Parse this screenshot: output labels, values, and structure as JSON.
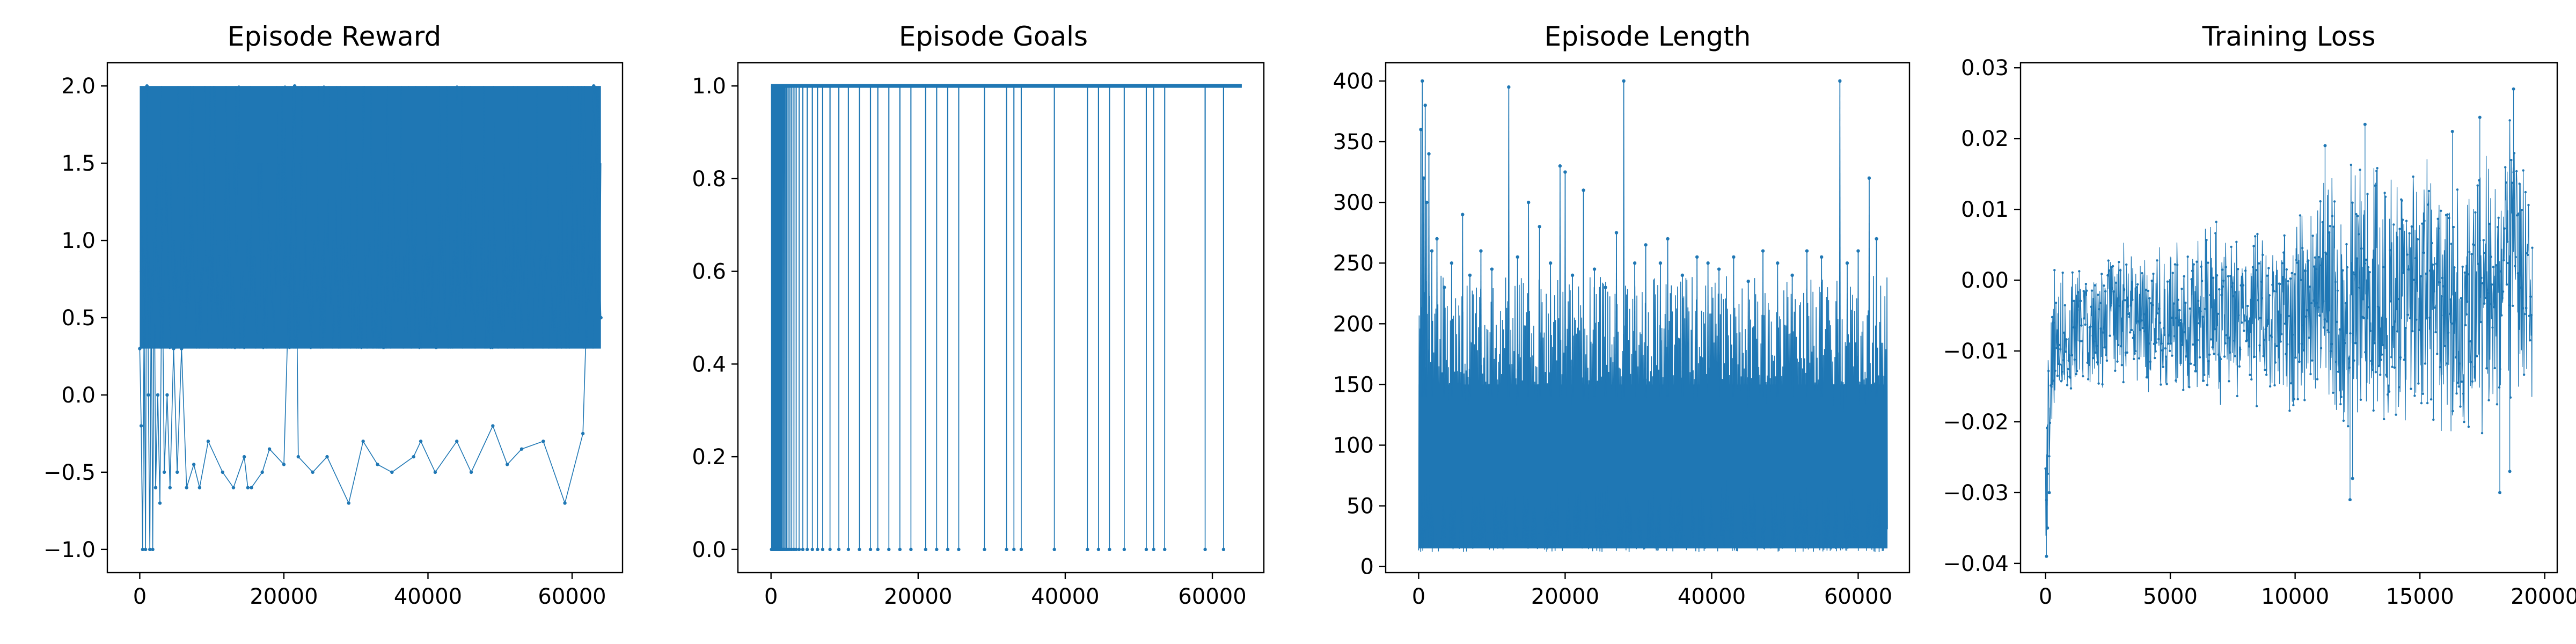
{
  "figure": {
    "background": "#ffffff",
    "series_color": "#1f77b4"
  },
  "chart_data": [
    {
      "type": "line",
      "title": "Episode Reward",
      "xlabel": "",
      "ylabel": "",
      "xlim": [
        -4500,
        67000
      ],
      "ylim": [
        -1.15,
        2.15
      ],
      "xticks": [
        0,
        20000,
        40000,
        60000
      ],
      "xtick_labels": [
        "0",
        "20000",
        "40000",
        "60000"
      ],
      "yticks": [
        -1.0,
        -0.5,
        0.0,
        0.5,
        1.0,
        1.5,
        2.0
      ],
      "ytick_labels": [
        "−1.0",
        "−0.5",
        "0.0",
        "0.5",
        "1.0",
        "1.5",
        "2.0"
      ],
      "grid": false,
      "legend": "none",
      "n_episodes": 64000,
      "series": [
        {
          "name": "",
          "summary": "per-episode reward, values mostly between 0.3 and 2.0, with occasional drops to negative values",
          "band": {
            "x": [
              0,
              64000
            ],
            "y": [
              0.3,
              2.0
            ]
          },
          "points": [
            [
              0,
              0.3
            ],
            [
              200,
              -0.2
            ],
            [
              400,
              -1.0
            ],
            [
              600,
              0.5
            ],
            [
              800,
              -1.0
            ],
            [
              1000,
              2.0
            ],
            [
              1200,
              0.0
            ],
            [
              1400,
              -1.0
            ],
            [
              1600,
              0.8
            ],
            [
              1800,
              -1.0
            ],
            [
              2000,
              1.0
            ],
            [
              2200,
              -0.6
            ],
            [
              2500,
              0.0
            ],
            [
              2800,
              -0.7
            ],
            [
              3100,
              1.0
            ],
            [
              3400,
              -0.5
            ],
            [
              3800,
              0.0
            ],
            [
              4200,
              -0.6
            ],
            [
              4700,
              0.3
            ],
            [
              5200,
              -0.5
            ],
            [
              5800,
              0.3
            ],
            [
              6500,
              -0.6
            ],
            [
              7500,
              -0.45
            ],
            [
              8300,
              -0.6
            ],
            [
              9500,
              -0.3
            ],
            [
              11500,
              -0.5
            ],
            [
              13000,
              -0.6
            ],
            [
              14500,
              -0.4
            ],
            [
              15000,
              -0.6
            ],
            [
              15500,
              -0.6
            ],
            [
              17000,
              -0.5
            ],
            [
              18000,
              -0.35
            ],
            [
              20000,
              -0.45
            ],
            [
              21500,
              2.0
            ],
            [
              22000,
              -0.4
            ],
            [
              24000,
              -0.5
            ],
            [
              26000,
              -0.4
            ],
            [
              29000,
              -0.7
            ],
            [
              31000,
              -0.3
            ],
            [
              33000,
              -0.45
            ],
            [
              35000,
              -0.5
            ],
            [
              38000,
              -0.4
            ],
            [
              39000,
              -0.3
            ],
            [
              41000,
              -0.5
            ],
            [
              44000,
              -0.3
            ],
            [
              46000,
              -0.5
            ],
            [
              49000,
              -0.2
            ],
            [
              51000,
              -0.45
            ],
            [
              53000,
              -0.35
            ],
            [
              56000,
              -0.3
            ],
            [
              59000,
              -0.7
            ],
            [
              61500,
              -0.25
            ],
            [
              63000,
              2.0
            ],
            [
              64000,
              0.5
            ]
          ]
        }
      ]
    },
    {
      "type": "line",
      "title": "Episode Goals",
      "xlabel": "",
      "ylabel": "",
      "xlim": [
        -4500,
        67000
      ],
      "ylim": [
        -0.05,
        1.05
      ],
      "xticks": [
        0,
        20000,
        40000,
        60000
      ],
      "xtick_labels": [
        "0",
        "20000",
        "40000",
        "60000"
      ],
      "yticks": [
        0.0,
        0.2,
        0.4,
        0.6,
        0.8,
        1.0
      ],
      "ytick_labels": [
        "0.0",
        "0.2",
        "0.4",
        "0.6",
        "0.8",
        "1.0"
      ],
      "grid": false,
      "legend": "none",
      "n_episodes": 64000,
      "series": [
        {
          "name": "",
          "summary": "binary goal indicator: nearly always 1.0, with frequent 0.0 episodes early and sparse 0.0 episodes later",
          "baseline": 1.0,
          "zero_episodes": [
            50,
            120,
            200,
            260,
            330,
            400,
            470,
            540,
            620,
            700,
            780,
            860,
            950,
            1040,
            1130,
            1230,
            1330,
            1450,
            1600,
            1750,
            1900,
            2100,
            2300,
            2550,
            2800,
            3100,
            3400,
            3800,
            4300,
            4900,
            5600,
            6300,
            7000,
            8000,
            9200,
            10500,
            12000,
            13500,
            14500,
            16000,
            17500,
            19000,
            21000,
            22500,
            24000,
            25500,
            29000,
            32000,
            33000,
            34000,
            38500,
            43000,
            44500,
            46000,
            48000,
            51000,
            52000,
            53500,
            59000,
            61500
          ]
        }
      ]
    },
    {
      "type": "line",
      "title": "Episode Length",
      "xlabel": "",
      "ylabel": "",
      "xlim": [
        -4500,
        67000
      ],
      "ylim": [
        -5,
        415
      ],
      "xticks": [
        0,
        20000,
        40000,
        60000
      ],
      "xtick_labels": [
        "0",
        "20000",
        "40000",
        "60000"
      ],
      "yticks": [
        0,
        50,
        100,
        150,
        200,
        250,
        300,
        350,
        400
      ],
      "ytick_labels": [
        "0",
        "50",
        "100",
        "150",
        "200",
        "250",
        "300",
        "350",
        "400"
      ],
      "grid": false,
      "legend": "none",
      "n_episodes": 64000,
      "series": [
        {
          "name": "",
          "summary": "episode length in steps: dense band roughly 15 to 150, frequent peaks 180 to 280, rare maxima at 400",
          "band": {
            "x": [
              0,
              64000
            ],
            "y": [
              15,
              150
            ]
          },
          "peaks": [
            [
              300,
              360
            ],
            [
              500,
              400
            ],
            [
              700,
              320
            ],
            [
              900,
              380
            ],
            [
              1100,
              300
            ],
            [
              1400,
              340
            ],
            [
              1800,
              260
            ],
            [
              2500,
              270
            ],
            [
              3500,
              230
            ],
            [
              4500,
              250
            ],
            [
              6000,
              290
            ],
            [
              7000,
              240
            ],
            [
              8500,
              260
            ],
            [
              10000,
              245
            ],
            [
              12300,
              395
            ],
            [
              13500,
              255
            ],
            [
              15000,
              300
            ],
            [
              16500,
              280
            ],
            [
              18000,
              250
            ],
            [
              19300,
              330
            ],
            [
              20000,
              325
            ],
            [
              21000,
              240
            ],
            [
              22500,
              310
            ],
            [
              24000,
              245
            ],
            [
              25500,
              230
            ],
            [
              27000,
              275
            ],
            [
              28000,
              400
            ],
            [
              29500,
              250
            ],
            [
              31000,
              265
            ],
            [
              33000,
              250
            ],
            [
              34000,
              270
            ],
            [
              36000,
              240
            ],
            [
              38000,
              255
            ],
            [
              39500,
              250
            ],
            [
              41000,
              245
            ],
            [
              43000,
              255
            ],
            [
              45000,
              235
            ],
            [
              47000,
              260
            ],
            [
              49000,
              250
            ],
            [
              51000,
              240
            ],
            [
              53000,
              260
            ],
            [
              55000,
              255
            ],
            [
              57500,
              400
            ],
            [
              58500,
              250
            ],
            [
              60000,
              260
            ],
            [
              61500,
              320
            ],
            [
              62500,
              270
            ]
          ]
        }
      ]
    },
    {
      "type": "line",
      "title": "Training Loss",
      "xlabel": "",
      "ylabel": "",
      "xlim": [
        -1000,
        20500
      ],
      "ylim": [
        -0.0413,
        0.0307
      ],
      "xticks": [
        0,
        5000,
        10000,
        15000,
        20000
      ],
      "xtick_labels": [
        "0",
        "5000",
        "10000",
        "15000",
        "20000"
      ],
      "yticks": [
        -0.04,
        -0.03,
        -0.02,
        -0.01,
        0.0,
        0.01,
        0.02,
        0.03
      ],
      "ytick_labels": [
        "−0.04",
        "−0.03",
        "−0.02",
        "−0.01",
        "0.00",
        "0.01",
        "0.02",
        "0.03"
      ],
      "grid": false,
      "legend": "none",
      "n_steps": 19500,
      "series": [
        {
          "name": "",
          "summary": "noisy training loss drifting upward from about -0.008 to about 0.0, with a dip near -0.039 at the start",
          "upper_envelope": [
            [
              0,
              -0.015
            ],
            [
              300,
              0.002
            ],
            [
              1000,
              0.003
            ],
            [
              2000,
              0.004
            ],
            [
              3000,
              0.006
            ],
            [
              4000,
              0.005
            ],
            [
              5000,
              0.006
            ],
            [
              6000,
              0.007
            ],
            [
              7000,
              0.009
            ],
            [
              8000,
              0.007
            ],
            [
              9000,
              0.01
            ],
            [
              10000,
              0.013
            ],
            [
              11000,
              0.015
            ],
            [
              12000,
              0.02
            ],
            [
              13000,
              0.018
            ],
            [
              14000,
              0.016
            ],
            [
              15000,
              0.019
            ],
            [
              16000,
              0.02
            ],
            [
              17000,
              0.018
            ],
            [
              18000,
              0.019
            ],
            [
              18700,
              0.027
            ],
            [
              19500,
              0.013
            ]
          ],
          "lower_envelope": [
            [
              0,
              -0.039
            ],
            [
              300,
              -0.02
            ],
            [
              1000,
              -0.018
            ],
            [
              2000,
              -0.016
            ],
            [
              3000,
              -0.017
            ],
            [
              4000,
              -0.017
            ],
            [
              5000,
              -0.018
            ],
            [
              6000,
              -0.017
            ],
            [
              7000,
              -0.018
            ],
            [
              8000,
              -0.019
            ],
            [
              9000,
              -0.02
            ],
            [
              10000,
              -0.022
            ],
            [
              11000,
              -0.021
            ],
            [
              12000,
              -0.024
            ],
            [
              13000,
              -0.022
            ],
            [
              14000,
              -0.021
            ],
            [
              15000,
              -0.022
            ],
            [
              16000,
              -0.024
            ],
            [
              17000,
              -0.023
            ],
            [
              18000,
              -0.024
            ],
            [
              18700,
              -0.018
            ],
            [
              19500,
              -0.02
            ]
          ],
          "spikes": [
            [
              40,
              -0.039
            ],
            [
              80,
              -0.035
            ],
            [
              150,
              -0.03
            ],
            [
              12200,
              -0.031
            ],
            [
              12300,
              -0.028
            ],
            [
              18200,
              -0.03
            ],
            [
              18600,
              -0.027
            ],
            [
              18750,
              0.027
            ],
            [
              17400,
              0.023
            ],
            [
              12800,
              0.022
            ],
            [
              11200,
              0.019
            ],
            [
              16300,
              0.021
            ]
          ]
        }
      ]
    }
  ]
}
